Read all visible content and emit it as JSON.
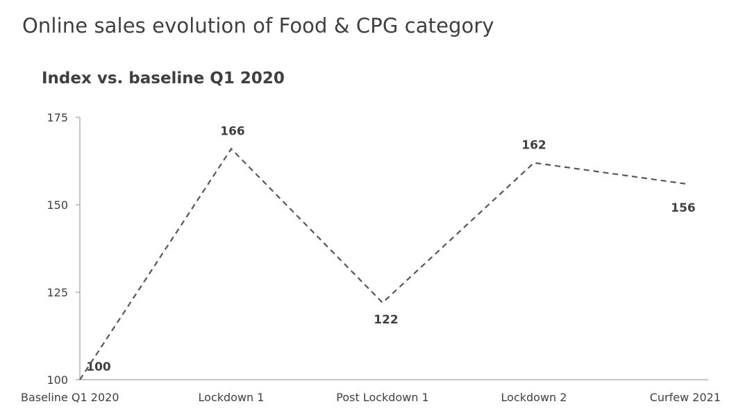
{
  "chart_data": {
    "type": "line",
    "title": "Online sales evolution of Food & CPG category",
    "subtitle": "Index vs. baseline Q1 2020",
    "categories": [
      "Baseline Q1 2020",
      "Lockdown 1",
      "Post Lockdown 1",
      "Lockdown 2",
      "Curfew 2021"
    ],
    "series": [
      {
        "values": [
          100,
          166,
          122,
          162,
          156
        ]
      }
    ],
    "ylim": [
      100,
      175
    ],
    "yticks": [
      100,
      125,
      150,
      175
    ],
    "grid": false,
    "legend": "none",
    "line_style": "dashed",
    "line_color": "#555555"
  }
}
